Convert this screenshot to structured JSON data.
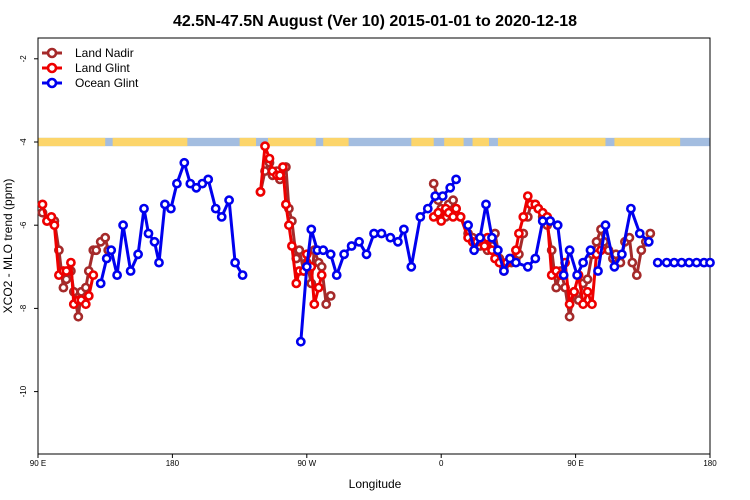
{
  "chart_data": {
    "type": "line",
    "title": "42.5N-47.5N August (Ver 10)   2015-01-01 to 2020-12-18",
    "xlabel": "Longitude",
    "ylabel": "XCO2 - MLO trend (ppm)",
    "xlim": [
      90,
      540
    ],
    "ylim": [
      -11.5,
      -1.5
    ],
    "x_ticks": [
      {
        "value": 90,
        "label": "90 E"
      },
      {
        "value": 180,
        "label": "180"
      },
      {
        "value": 270,
        "label": "90 W"
      },
      {
        "value": 360,
        "label": "0"
      },
      {
        "value": 450,
        "label": "90 E"
      },
      {
        "value": 540,
        "label": "180"
      }
    ],
    "y_ticks": [
      -10,
      -8,
      -6,
      -4,
      -2
    ],
    "legend_position": "top-left",
    "land_band": {
      "y_range": [
        -4.1,
        -3.9
      ],
      "land_color": "#fcd56b",
      "ocean_color": "#a3bde0"
    },
    "series": [
      {
        "name": "Land Nadir",
        "color": "#a52a2a",
        "x": [
          93,
          96,
          99,
          101,
          104,
          107,
          109,
          112,
          114,
          117,
          119,
          122,
          124,
          127,
          129,
          132,
          135,
          137,
          239,
          242,
          245,
          247,
          250,
          252,
          254,
          256,
          258,
          260,
          263,
          265,
          268,
          270,
          273,
          275,
          278,
          280,
          283,
          286,
          355,
          358,
          360,
          363,
          365,
          368,
          370,
          373,
          378,
          381,
          384,
          386,
          389,
          391,
          394,
          396,
          399,
          402,
          404,
          407,
          410,
          412,
          415,
          418,
          420,
          423,
          425,
          428,
          431,
          434,
          437,
          440,
          443,
          446,
          449,
          452,
          455,
          458,
          461,
          464,
          467,
          469,
          472,
          475,
          477,
          480,
          483,
          486,
          488,
          491,
          494,
          497,
          500
        ],
        "y": [
          -5.7,
          -5.9,
          -5.9,
          -5.9,
          -6.6,
          -7.5,
          -7.3,
          -7.1,
          -7.6,
          -8.2,
          -7.6,
          -7.5,
          -7.1,
          -6.6,
          -6.6,
          -6.4,
          -6.3,
          -6.6,
          -5.2,
          -4.7,
          -4.5,
          -4.8,
          -4.7,
          -4.9,
          -4.8,
          -4.6,
          -5.6,
          -5.9,
          -6.8,
          -6.6,
          -7.1,
          -6.9,
          -7.4,
          -6.6,
          -6.9,
          -7.0,
          -7.9,
          -7.7,
          -5.0,
          -5.4,
          -5.6,
          -5.8,
          -5.5,
          -5.4,
          -5.6,
          -5.8,
          -6.2,
          -6.3,
          -6.4,
          -6.5,
          -6.4,
          -6.6,
          -6.5,
          -6.2,
          -6.8,
          -7.0,
          -6.9,
          -6.9,
          -6.8,
          -6.7,
          -6.2,
          -5.8,
          -5.5,
          -5.5,
          -5.6,
          -5.8,
          -6.0,
          -6.6,
          -7.5,
          -7.1,
          -7.5,
          -8.2,
          -7.6,
          -7.8,
          -7.4,
          -7.3,
          -6.7,
          -6.4,
          -6.1,
          -6.4,
          -6.6,
          -6.8,
          -6.7,
          -6.9,
          -6.4,
          -6.3,
          -6.9,
          -7.2,
          -6.6,
          -6.4,
          -6.2
        ],
        "visible_from_index": 0,
        "visible_segments": [
          [
            0,
            17
          ],
          [
            18,
            37
          ],
          [
            38,
            60
          ],
          [
            61,
            90
          ]
        ]
      },
      {
        "name": "Land Glint",
        "color": "#ee0000",
        "x": [
          93,
          96,
          99,
          101,
          104,
          107,
          109,
          112,
          114,
          117,
          119,
          122,
          124,
          127,
          239,
          242,
          245,
          247,
          250,
          252,
          254,
          256,
          258,
          260,
          263,
          265,
          268,
          270,
          273,
          275,
          278,
          280,
          355,
          358,
          360,
          363,
          365,
          368,
          370,
          373,
          378,
          381,
          384,
          386,
          389,
          391,
          394,
          396,
          399,
          402,
          404,
          407,
          410,
          412,
          415,
          418,
          420,
          423,
          425,
          428,
          431,
          434,
          437,
          440,
          443,
          446,
          449,
          452,
          455,
          458,
          461,
          464,
          467
        ],
        "y": [
          -5.5,
          -5.9,
          -5.8,
          -6.0,
          -7.2,
          -7.1,
          -7.1,
          -6.9,
          -7.9,
          -7.8,
          -7.8,
          -7.9,
          -7.7,
          -7.2,
          -5.2,
          -4.1,
          -4.4,
          -4.7,
          -4.8,
          -4.8,
          -4.6,
          -5.5,
          -6.0,
          -6.5,
          -7.4,
          -7.1,
          -7.1,
          -6.7,
          -7.0,
          -7.9,
          -7.5,
          -7.2,
          -5.8,
          -5.7,
          -5.9,
          -5.6,
          -5.7,
          -5.8,
          -5.6,
          -5.8,
          -6.3,
          -6.4,
          -6.4,
          -6.3,
          -6.5,
          -6.3,
          -6.6,
          -6.8,
          -6.9,
          -7.1,
          -6.9,
          -6.8,
          -6.6,
          -6.2,
          -5.8,
          -5.3,
          -5.5,
          -5.5,
          -5.6,
          -5.7,
          -5.8,
          -7.2,
          -7.1,
          -7.2,
          -6.9,
          -7.9,
          -7.6,
          -7.2,
          -7.9,
          -7.6,
          -7.9,
          -6.7,
          -6.6
        ],
        "visible_segments": [
          [
            0,
            13
          ],
          [
            14,
            31
          ],
          [
            32,
            72
          ]
        ]
      },
      {
        "name": "Ocean Glint",
        "color": "#0000ee",
        "x": [
          132,
          136,
          139,
          143,
          147,
          152,
          157,
          161,
          164,
          168,
          171,
          175,
          179,
          183,
          188,
          192,
          196,
          200,
          204,
          209,
          213,
          218,
          222,
          227,
          266,
          270,
          273,
          277,
          281,
          286,
          290,
          295,
          300,
          305,
          310,
          315,
          320,
          326,
          331,
          335,
          340,
          346,
          351,
          356,
          361,
          366,
          370,
          378,
          382,
          386,
          390,
          394,
          398,
          402,
          406,
          410,
          418,
          423,
          428,
          433,
          438,
          442,
          446,
          451,
          455,
          460,
          465,
          470,
          476,
          481,
          487,
          493,
          499,
          505,
          511,
          516,
          521,
          526,
          531,
          536,
          540
        ],
        "y": [
          -7.4,
          -6.8,
          -6.6,
          -7.2,
          -6.0,
          -7.1,
          -6.7,
          -5.6,
          -6.2,
          -6.4,
          -6.9,
          -5.5,
          -5.6,
          -5.0,
          -4.5,
          -5.0,
          -5.1,
          -5.0,
          -4.9,
          -5.6,
          -5.8,
          -5.4,
          -6.9,
          -7.2,
          -8.8,
          -7.0,
          -6.1,
          -6.6,
          -6.6,
          -6.7,
          -7.2,
          -6.7,
          -6.5,
          -6.4,
          -6.7,
          -6.2,
          -6.2,
          -6.3,
          -6.4,
          -6.1,
          -7.0,
          -5.8,
          -5.6,
          -5.3,
          -5.3,
          -5.1,
          -4.9,
          -6.0,
          -6.6,
          -6.3,
          -5.5,
          -6.3,
          -6.6,
          -7.1,
          -6.8,
          -6.9,
          -7.0,
          -6.8,
          -5.9,
          -5.9,
          -6.0,
          -7.2,
          -6.6,
          -7.2,
          -6.9,
          -6.6,
          -7.1,
          -6.0,
          -7.0,
          -6.7,
          -5.6,
          -6.2,
          -6.4,
          -6.9,
          -6.9,
          -6.9,
          -6.9,
          -6.9,
          -6.9,
          -6.9,
          -6.9
        ],
        "visible_segments": [
          [
            0,
            23
          ],
          [
            24,
            46
          ],
          [
            47,
            65
          ],
          [
            66,
            72
          ]
        ]
      }
    ]
  }
}
